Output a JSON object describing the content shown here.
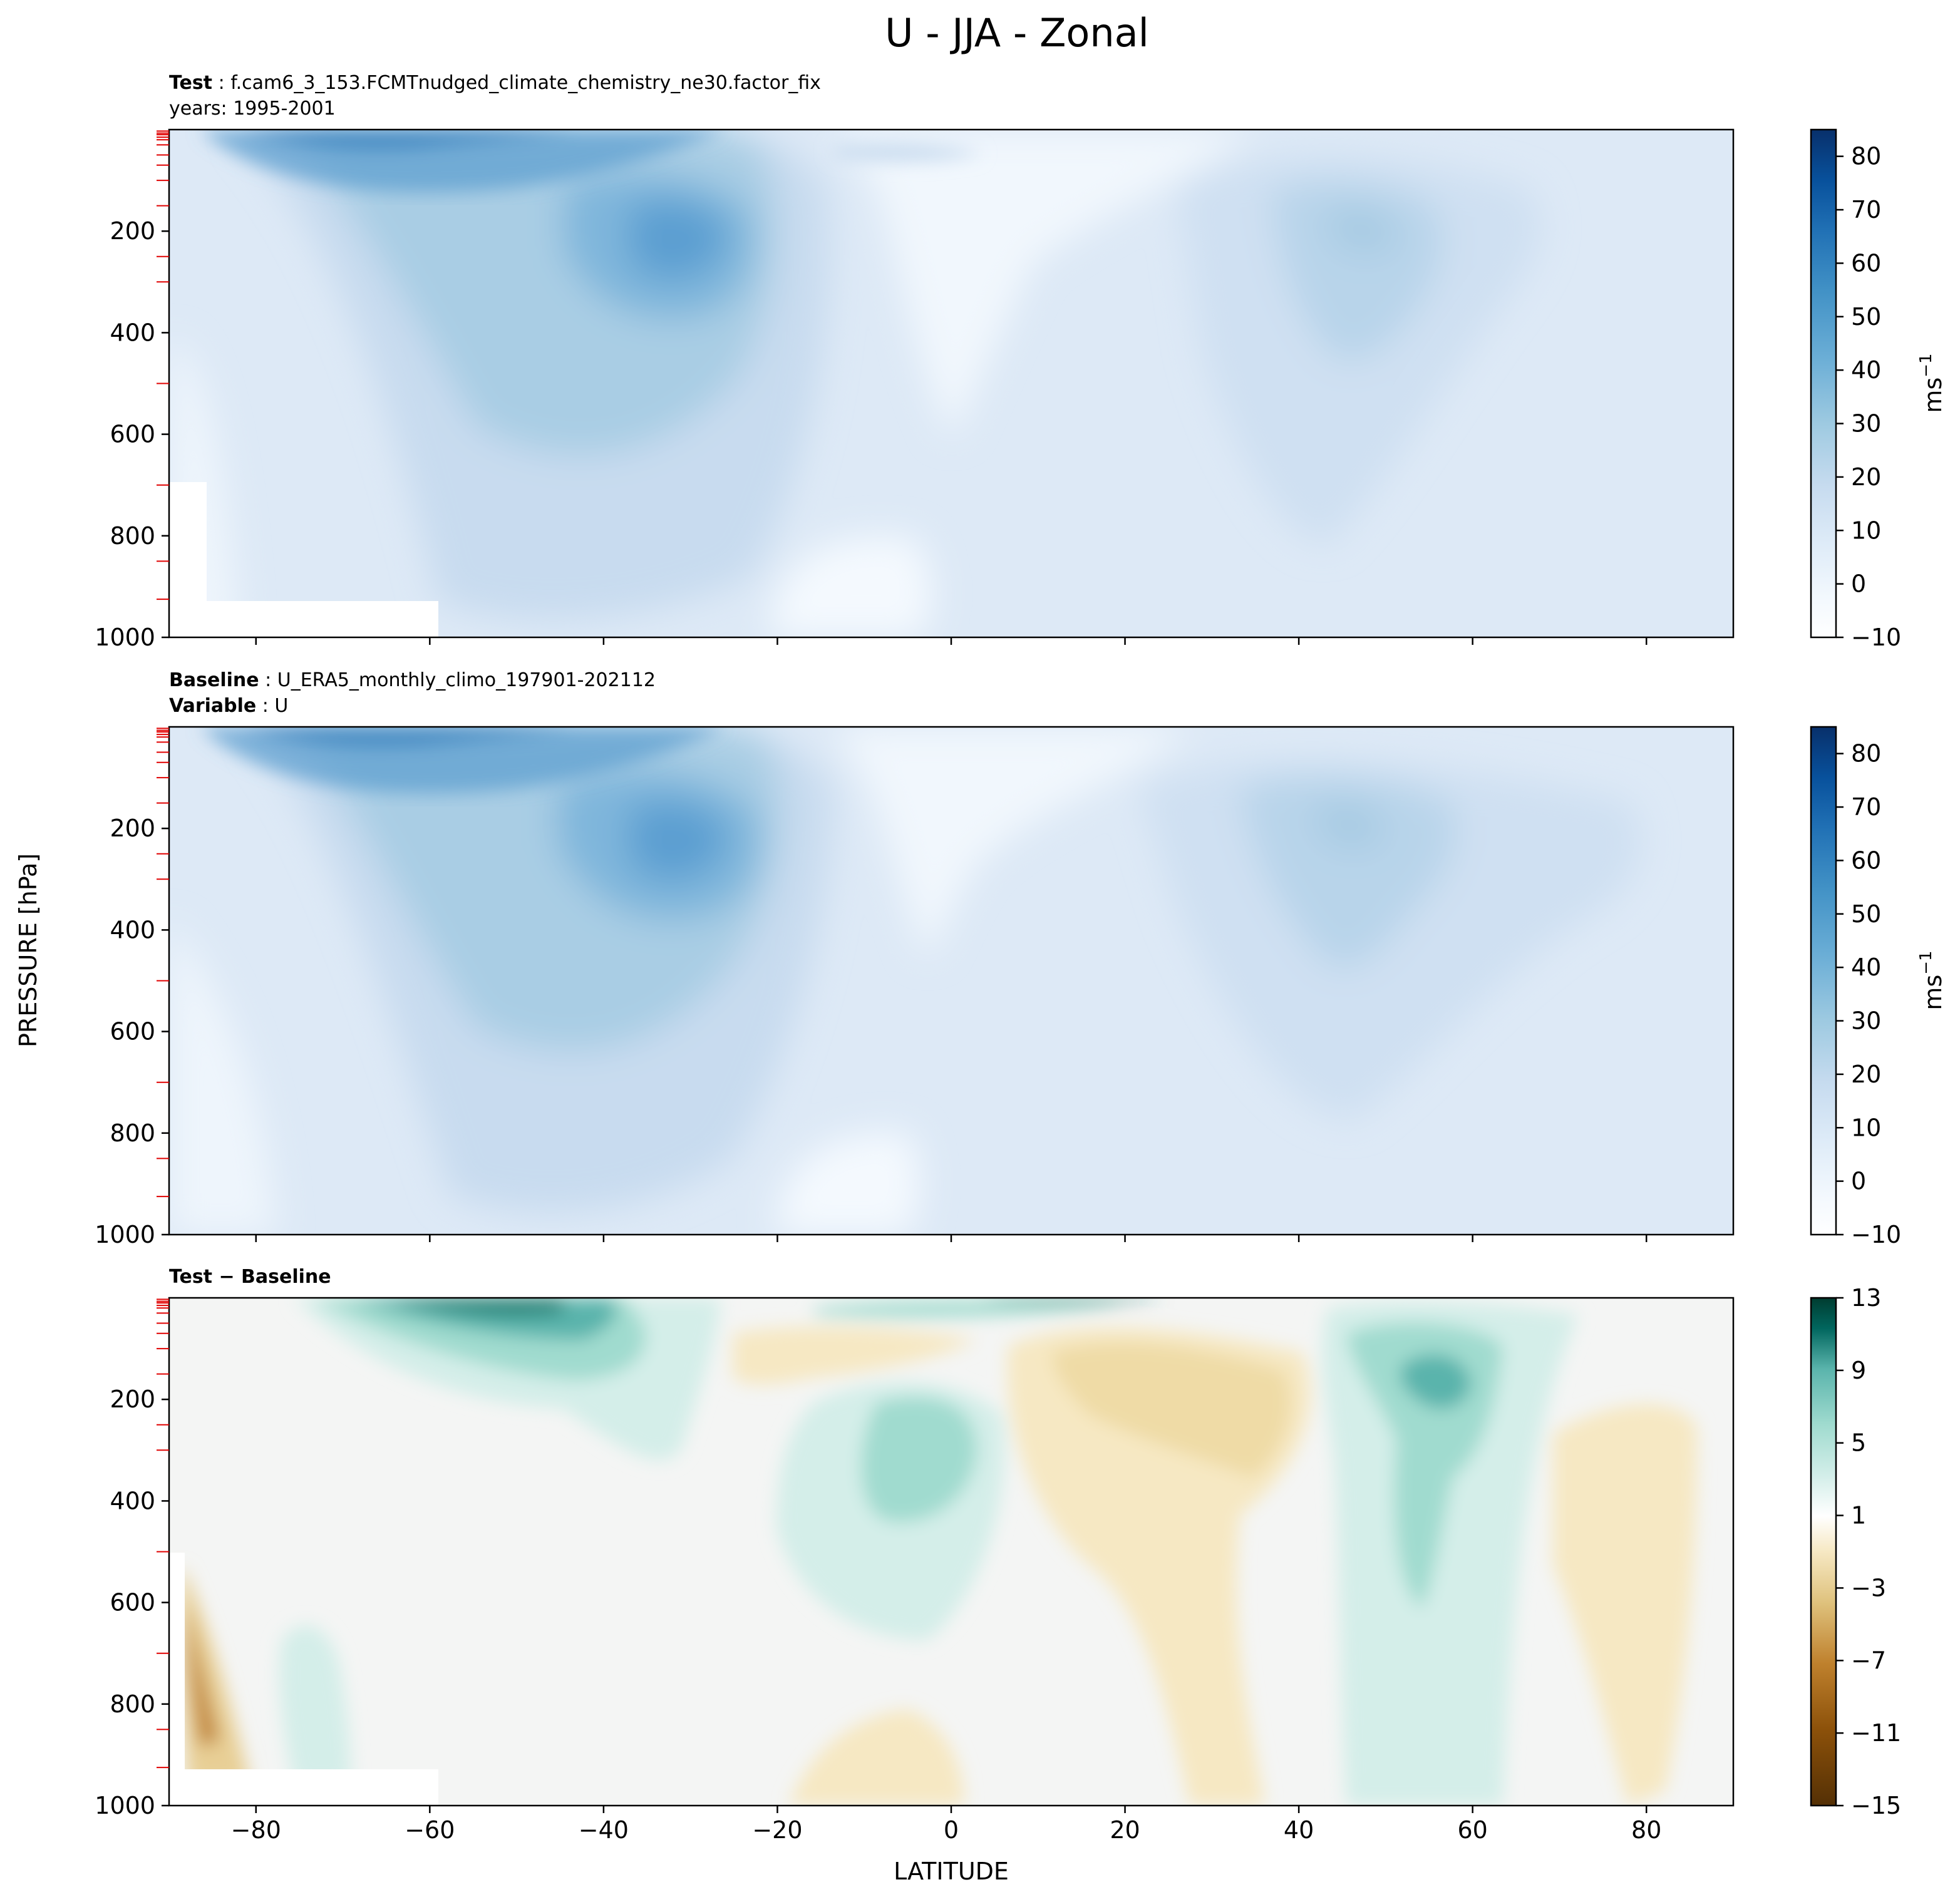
{
  "chart_data": {
    "type": "heatmap",
    "title": "U - JJA - Zonal",
    "xlabel": "LATITUDE",
    "ylabel": "PRESSURE [hPa]",
    "xlim": [
      -90,
      90
    ],
    "ylim": [
      1000,
      0
    ],
    "xticks": [
      -80,
      -60,
      -40,
      -20,
      0,
      20,
      40,
      60,
      80
    ],
    "yticks": [
      200,
      400,
      600,
      800,
      1000
    ],
    "panels": [
      {
        "id": "test",
        "title_lines": [
          {
            "bold": "Test",
            "text": " : f.cam6_3_153.FCMTnudged_climate_chemistry_ne30.factor_fix"
          },
          {
            "bold": "",
            "text": "years: 1995-2001"
          }
        ],
        "colorbar": {
          "units": "ms",
          "units_sup": "−1",
          "ticks": [
            -10,
            0,
            10,
            20,
            30,
            40,
            50,
            60,
            70,
            80
          ],
          "range": [
            -10,
            85
          ]
        },
        "jets": [
          {
            "lat": -31,
            "p": 210,
            "max": 45
          },
          {
            "lat": 46,
            "p": 210,
            "max": 25
          }
        ]
      },
      {
        "id": "baseline",
        "title_lines": [
          {
            "bold": "Baseline",
            "text": " : U_ERA5_monthly_climo_197901-202112"
          },
          {
            "bold": "Variable",
            "text": " : U"
          }
        ],
        "colorbar": {
          "units": "ms",
          "units_sup": "−1",
          "ticks": [
            -10,
            0,
            10,
            20,
            30,
            40,
            50,
            60,
            70,
            80
          ],
          "range": [
            -10,
            85
          ]
        },
        "jets": [
          {
            "lat": -28,
            "p": 205,
            "max": 45
          },
          {
            "lat": 45,
            "p": 205,
            "max": 25
          }
        ]
      },
      {
        "id": "diff",
        "title_lines": [
          {
            "bold": "Test − Baseline",
            "text": ""
          }
        ],
        "colorbar": {
          "units": "",
          "units_sup": "",
          "ticks": [
            13,
            9,
            5,
            1,
            -3,
            -7,
            -11,
            -15
          ],
          "range": [
            -15,
            13
          ]
        }
      }
    ]
  }
}
